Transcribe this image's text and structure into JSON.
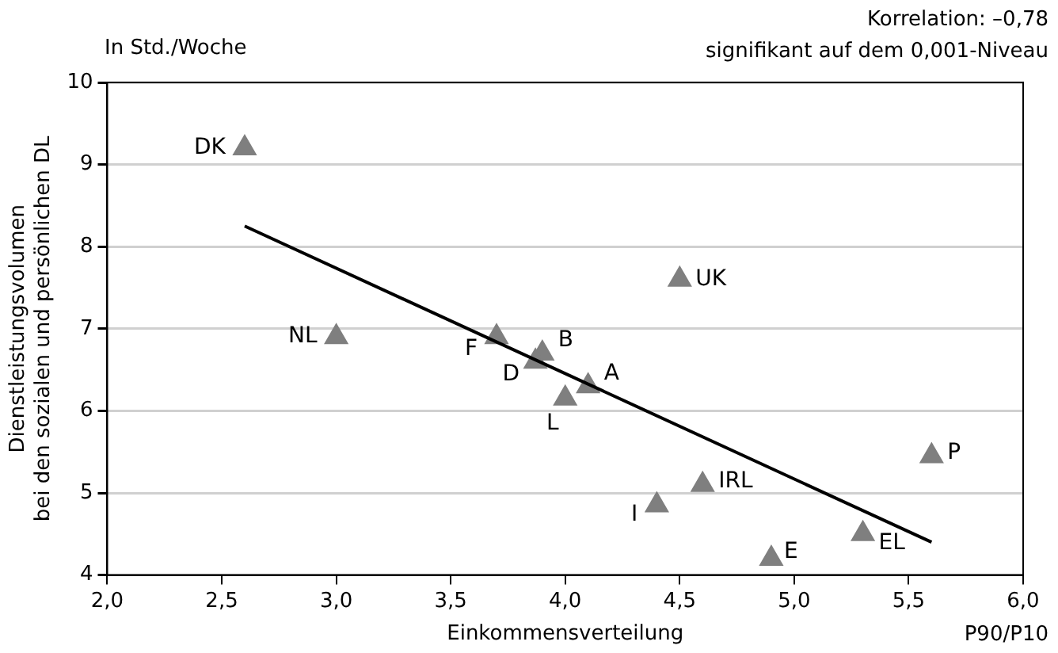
{
  "chart_data": {
    "type": "scatter",
    "xlabel": "Einkommensverteilung",
    "ylabel": "Dienstleistungsvolumen\nbei den sozialen und persönlichen DL",
    "annotations": [
      "In Std./Woche",
      "Korrelation: –0,78",
      "signifikant auf dem 0,001-Niveau",
      "P90/P10"
    ],
    "xlim": [
      2,
      6
    ],
    "xticks": [
      {
        "value": 2,
        "label": "2,0"
      },
      {
        "value": 2.5,
        "label": "2,5"
      },
      {
        "value": 3,
        "label": "3,0"
      },
      {
        "value": 3.5,
        "label": "3,5"
      },
      {
        "value": 4,
        "label": "4,0"
      },
      {
        "value": 4.5,
        "label": "4,5"
      },
      {
        "value": 5,
        "label": "5,0"
      },
      {
        "value": 5.5,
        "label": "5,5"
      },
      {
        "value": 6,
        "label": "6,0"
      }
    ],
    "ylim": [
      4,
      10
    ],
    "yticks": [
      4,
      5,
      6,
      7,
      8,
      9,
      10
    ],
    "grid": "y",
    "legend": false,
    "marker": "triangle",
    "series": [
      {
        "name": "DK",
        "color": "#7f7f7f",
        "x": [
          2.6
        ],
        "values": [
          9.2
        ]
      },
      {
        "name": "NL",
        "color": "#7f7f7f",
        "x": [
          3.0
        ],
        "values": [
          6.9
        ]
      },
      {
        "name": "F",
        "color": "#7f7f7f",
        "x": [
          3.7
        ],
        "values": [
          6.9
        ]
      },
      {
        "name": "D",
        "color": "#7f7f7f",
        "x": [
          3.87
        ],
        "values": [
          6.6
        ]
      },
      {
        "name": "B",
        "color": "#7f7f7f",
        "x": [
          3.9
        ],
        "values": [
          6.7
        ]
      },
      {
        "name": "L",
        "color": "#7f7f7f",
        "x": [
          4.0
        ],
        "values": [
          6.15
        ]
      },
      {
        "name": "A",
        "color": "#7f7f7f",
        "x": [
          4.1
        ],
        "values": [
          6.3
        ]
      },
      {
        "name": "UK",
        "color": "#7f7f7f",
        "x": [
          4.5
        ],
        "values": [
          7.6
        ]
      },
      {
        "name": "I",
        "color": "#7f7f7f",
        "x": [
          4.4
        ],
        "values": [
          4.85
        ]
      },
      {
        "name": "IRL",
        "color": "#7f7f7f",
        "x": [
          4.6
        ],
        "values": [
          5.1
        ]
      },
      {
        "name": "E",
        "color": "#7f7f7f",
        "x": [
          4.9
        ],
        "values": [
          4.2
        ]
      },
      {
        "name": "EL",
        "color": "#7f7f7f",
        "x": [
          5.3
        ],
        "values": [
          4.5
        ]
      },
      {
        "name": "P",
        "color": "#7f7f7f",
        "x": [
          5.6
        ],
        "values": [
          5.45
        ]
      },
      {
        "type": "line",
        "color": "#000000",
        "x": [
          2.6,
          5.6
        ],
        "values": [
          8.25,
          4.4
        ],
        "marker": "none"
      }
    ]
  }
}
